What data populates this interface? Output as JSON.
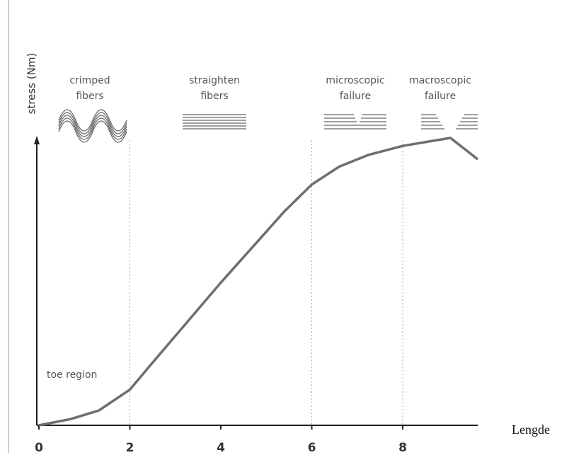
{
  "chart_data": {
    "type": "line",
    "x_label": "Lengde",
    "y_label": "stress (Nm)",
    "x": [
      0,
      0.7,
      1.32,
      2,
      2.4,
      4,
      5.4,
      6,
      6.6,
      7.25,
      8,
      9.05,
      9.65
    ],
    "values": [
      0,
      0.21,
      0.5,
      1.2,
      1.93,
      4.8,
      7.2,
      8.1,
      8.7,
      9.1,
      9.4,
      9.67,
      8.95
    ],
    "color": "#6e6e6e",
    "xlim": [
      0,
      9.65
    ],
    "ylim": [
      0,
      10
    ],
    "xticks": [
      0,
      2,
      4,
      6,
      8
    ],
    "region_boundaries": [
      2,
      6,
      8
    ],
    "annotations": [
      "toe region"
    ],
    "regions": [
      [
        "crimped",
        "fibers"
      ],
      [
        "straighten",
        "fibers"
      ],
      [
        "microscopic",
        "failure"
      ],
      [
        "macroscopic",
        "failure"
      ]
    ]
  }
}
